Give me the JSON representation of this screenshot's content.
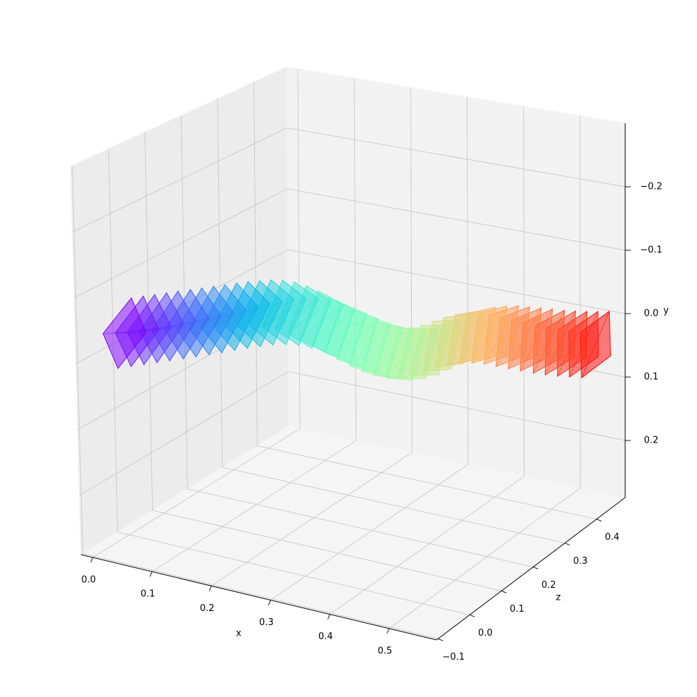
{
  "chart_data": {
    "type": "3d-frames",
    "xlabel": "x",
    "ylabel": "y",
    "zlabel": "z",
    "xlim": [
      -0.02,
      0.58
    ],
    "ylim": [
      0.29,
      -0.3
    ],
    "zlim": [
      -0.105,
      0.49
    ],
    "xticks": [
      {
        "value": 0,
        "label": "0.0"
      },
      0.1,
      0.2,
      0.3,
      0.4,
      0.5
    ],
    "yticks": [
      {
        "value": -0.2,
        "label": "−0.2"
      },
      {
        "value": -0.1,
        "label": "−0.1"
      },
      {
        "value": 0,
        "label": "0.0"
      },
      0.1,
      0.2
    ],
    "zticks": [
      {
        "value": -0.1,
        "label": "−0.1"
      },
      {
        "value": 0,
        "label": "0.0"
      },
      0.1,
      0.2,
      0.3,
      0.4
    ],
    "grid": true,
    "colormap": "rainbow",
    "x": [
      0.0,
      0.014,
      0.028,
      0.042,
      0.056,
      0.071,
      0.085,
      0.099,
      0.113,
      0.127,
      0.141,
      0.155,
      0.169,
      0.183,
      0.197,
      0.212,
      0.226,
      0.24,
      0.254,
      0.268,
      0.282,
      0.296,
      0.31,
      0.324,
      0.338,
      0.353,
      0.367,
      0.381,
      0.395,
      0.409,
      0.423,
      0.437,
      0.451,
      0.465,
      0.479,
      0.494,
      0.508,
      0.522,
      0.536,
      0.55
    ],
    "y": [
      -0.02,
      -0.022,
      -0.024,
      -0.026,
      -0.028,
      -0.03,
      -0.032,
      -0.034,
      -0.036,
      -0.038,
      -0.04,
      -0.041,
      -0.042,
      -0.041,
      -0.038,
      -0.032,
      -0.024,
      -0.014,
      -0.004,
      0.006,
      0.016,
      0.024,
      0.03,
      0.034,
      0.034,
      0.03,
      0.024,
      0.018,
      0.014,
      0.012,
      0.012,
      0.014,
      0.018,
      0.022,
      0.026,
      0.03,
      0.033,
      0.036,
      0.038,
      0.04
    ],
    "z": [
      0.0,
      0.012,
      0.023,
      0.035,
      0.046,
      0.058,
      0.069,
      0.081,
      0.092,
      0.104,
      0.115,
      0.127,
      0.138,
      0.15,
      0.162,
      0.173,
      0.185,
      0.196,
      0.208,
      0.219,
      0.231,
      0.242,
      0.254,
      0.265,
      0.277,
      0.288,
      0.3,
      0.312,
      0.323,
      0.335,
      0.346,
      0.358,
      0.369,
      0.381,
      0.392,
      0.404,
      0.415,
      0.427,
      0.438,
      0.45
    ]
  }
}
